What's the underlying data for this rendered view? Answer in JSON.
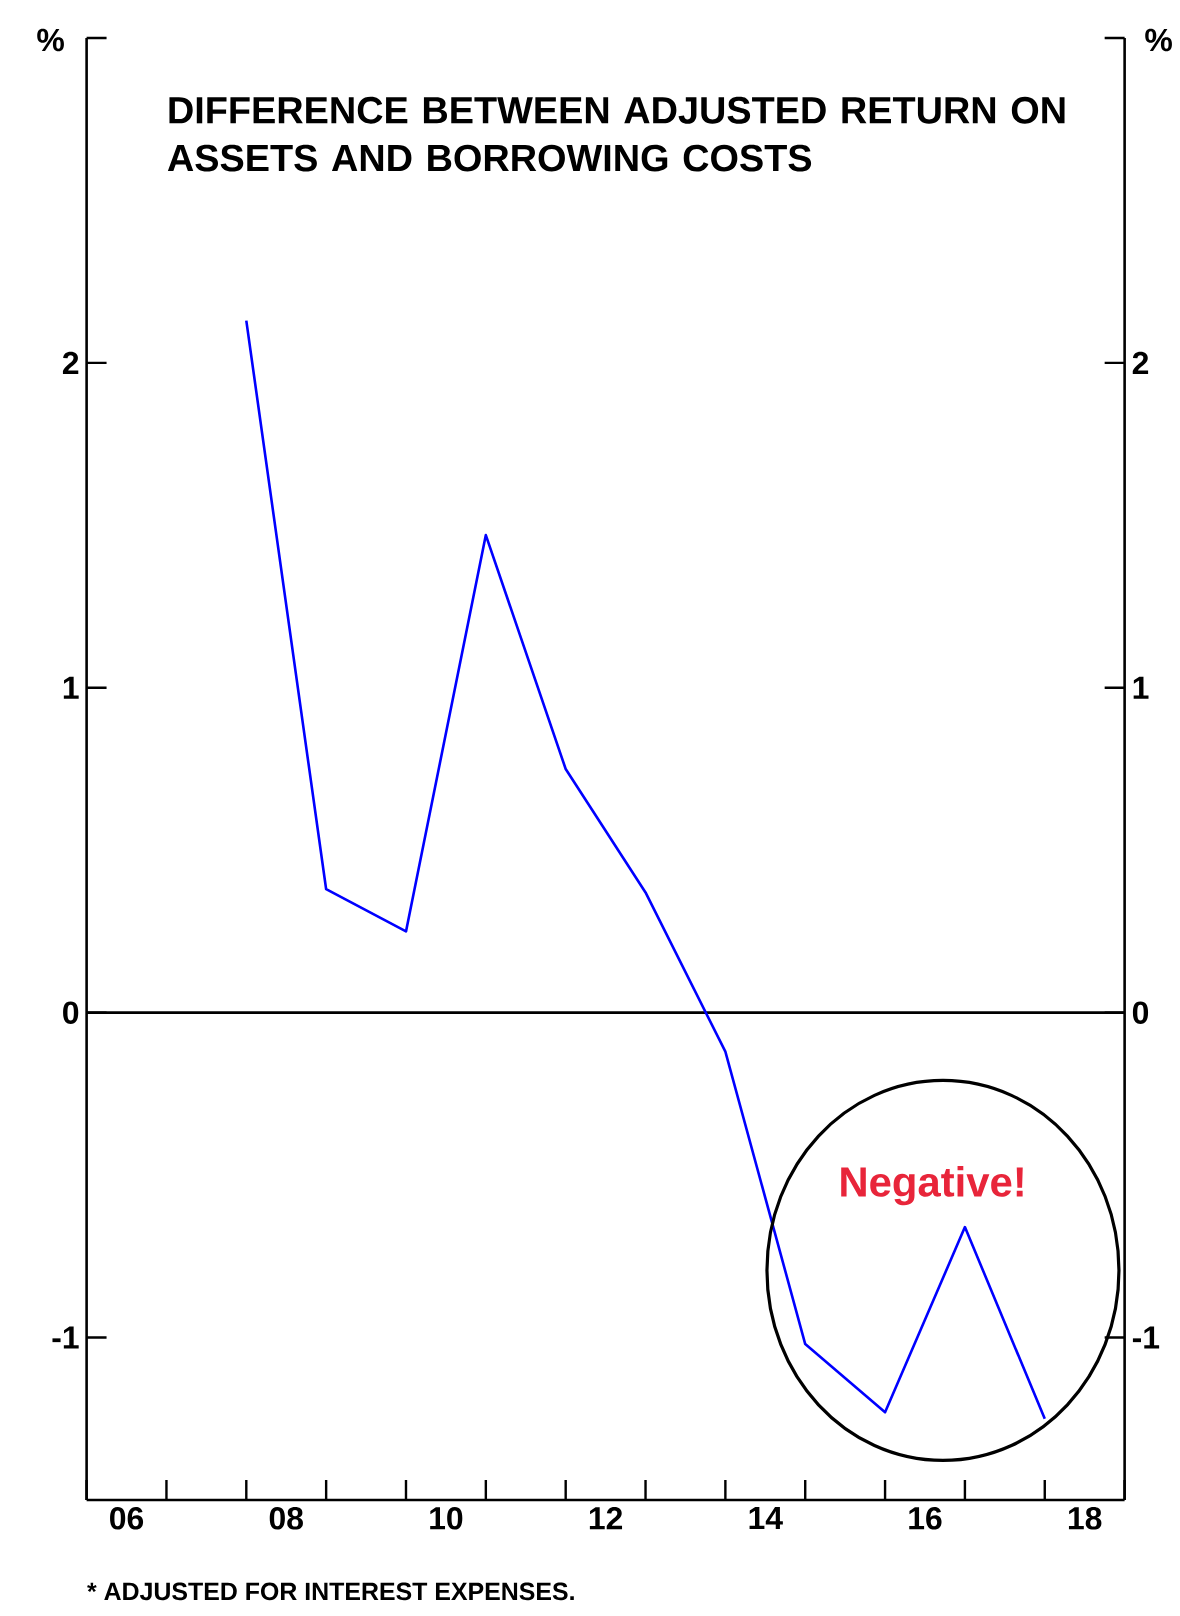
{
  "chart_data": {
    "type": "line",
    "title": "DIFFERENCE BETWEEN ADJUSTED RETURN ON ASSETS AND BORROWING COSTS",
    "ylabel": "%",
    "y2label": "%",
    "annotations": [
      "Negative!",
      "* ADJUSTED FOR INTEREST EXPENSES."
    ],
    "x": [
      2007.5,
      2008.5,
      2009.5,
      2010.5,
      2011.5,
      2012.5,
      2013.5,
      2014.5,
      2015.5,
      2016.5,
      2017.5
    ],
    "series": [
      {
        "color": "#0000ff",
        "values": [
          2.13,
          0.38,
          0.25,
          1.47,
          0.75,
          0.37,
          -0.12,
          -1.02,
          -1.23,
          -0.66,
          -1.25
        ]
      }
    ],
    "xlim": [
      2005.5,
      2018.5
    ],
    "xticks": [
      {
        "value": 2005.5,
        "label": null
      },
      {
        "value": 2006.5,
        "label": null
      },
      {
        "value": 2007.5,
        "label": null
      },
      {
        "value": 2008.5,
        "label": null
      },
      {
        "value": 2009.5,
        "label": null
      },
      {
        "value": 2010.5,
        "label": null
      },
      {
        "value": 2011.5,
        "label": null
      },
      {
        "value": 2012.5,
        "label": null
      },
      {
        "value": 2013.5,
        "label": null
      },
      {
        "value": 2014.5,
        "label": null
      },
      {
        "value": 2015.5,
        "label": null
      },
      {
        "value": 2016.5,
        "label": null
      },
      {
        "value": 2017.5,
        "label": null
      },
      {
        "value": 2018.5,
        "label": null
      },
      {
        "value": 2006,
        "label": "06"
      },
      {
        "value": 2008,
        "label": "08"
      },
      {
        "value": 2010,
        "label": "10"
      },
      {
        "value": 2012,
        "label": "12"
      },
      {
        "value": 2014,
        "label": "14"
      },
      {
        "value": 2016,
        "label": "16"
      },
      {
        "value": 2018,
        "label": "18"
      }
    ],
    "ylim": [
      -1.5,
      3
    ],
    "yticks": [
      -1,
      0,
      1,
      2,
      {
        "value": 3,
        "label": null
      }
    ],
    "y2lim": [
      -1.5,
      3
    ],
    "y2ticks": [
      -1,
      0,
      1,
      2,
      {
        "value": 3,
        "label": null
      }
    ],
    "ref_lines": [
      {
        "axis": "y",
        "value": 0,
        "color": "#000000"
      }
    ],
    "marker": "none",
    "line_style": "solid"
  }
}
